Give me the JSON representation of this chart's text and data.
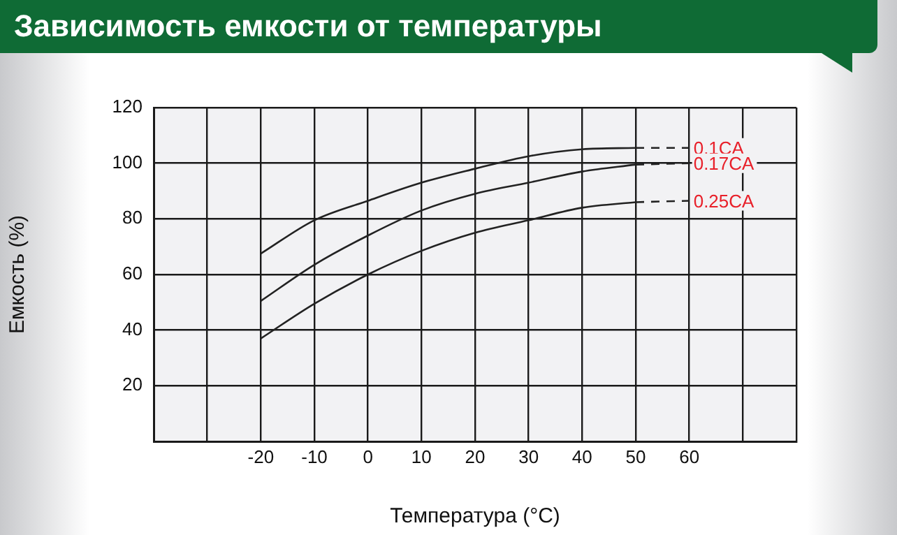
{
  "chart_data": {
    "type": "line",
    "title": "Зависимость емкости от температуры",
    "xlabel": "Температура (°C)",
    "ylabel": "Емкость (%)",
    "xlim": [
      -40,
      80
    ],
    "xticks": [
      {
        "value": -40,
        "label": null
      },
      {
        "value": -30,
        "label": null
      },
      -20,
      -10,
      0,
      10,
      20,
      30,
      40,
      50,
      60,
      {
        "value": 70,
        "label": null
      },
      {
        "value": 80,
        "label": null
      }
    ],
    "ylim": [
      0,
      120
    ],
    "yticks": [
      20,
      40,
      60,
      80,
      100,
      120
    ],
    "grid": true,
    "legend": false,
    "marker": "none",
    "series": [
      {
        "color": "#222222",
        "line_style": "solid",
        "x": [
          -20,
          -10,
          0,
          10,
          20,
          30,
          40,
          50
        ],
        "values": [
          67.5,
          79.5,
          86.5,
          93,
          98,
          102.5,
          105,
          105.5
        ]
      },
      {
        "name": "0.1CA",
        "color": "#222222",
        "line_style": "dashed",
        "x": [
          50,
          60
        ],
        "values": [
          105.5,
          105.5
        ]
      },
      {
        "color": "#222222",
        "line_style": "solid",
        "x": [
          -20,
          -10,
          0,
          10,
          20,
          30,
          40,
          50
        ],
        "values": [
          50.5,
          63.5,
          74,
          83,
          89,
          93,
          97,
          99.5
        ]
      },
      {
        "name": "0.17CA",
        "color": "#222222",
        "line_style": "dashed",
        "x": [
          50,
          60
        ],
        "values": [
          99.5,
          100
        ]
      },
      {
        "color": "#222222",
        "line_style": "solid",
        "x": [
          -20,
          -10,
          0,
          10,
          20,
          30,
          40,
          50
        ],
        "values": [
          37,
          49.5,
          60,
          68.5,
          75,
          79.5,
          84,
          86
        ]
      },
      {
        "name": "0.25CA",
        "color": "#222222",
        "line_style": "dashed",
        "x": [
          50,
          60
        ],
        "values": [
          86,
          86.5
        ]
      }
    ]
  }
}
